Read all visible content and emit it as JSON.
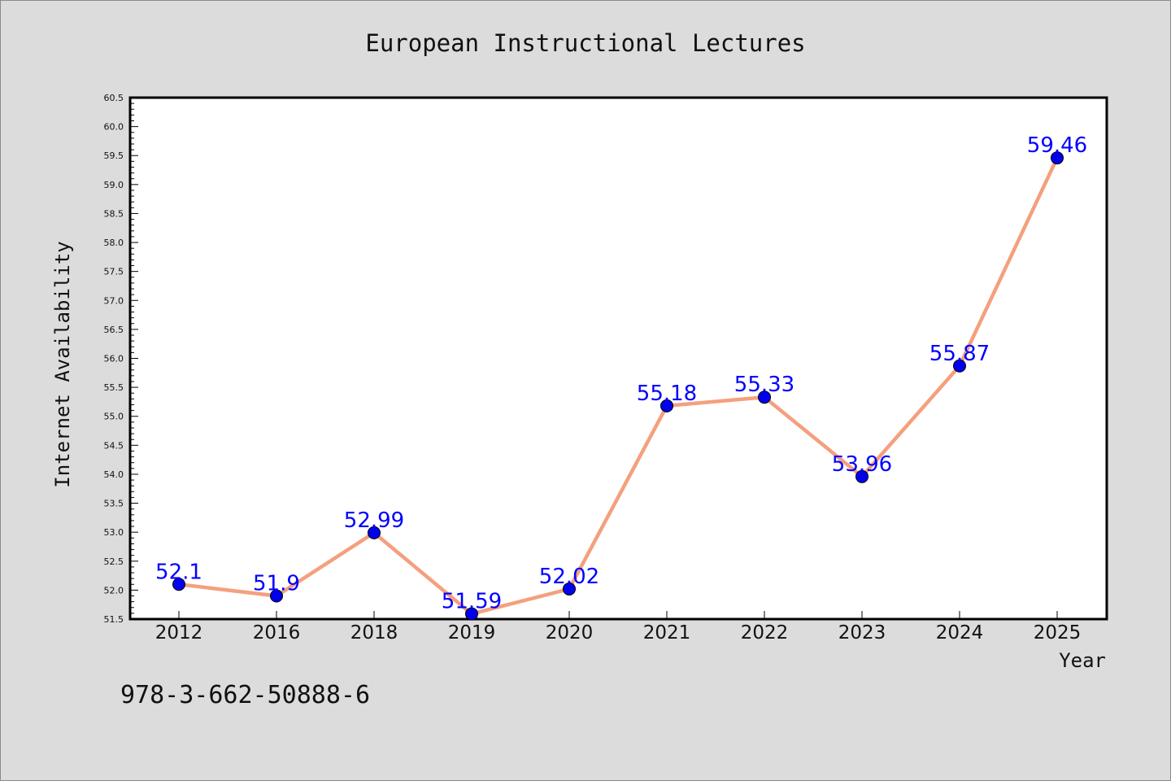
{
  "chart_data": {
    "type": "line",
    "title": "European Instructional Lectures",
    "xlabel": "Year",
    "ylabel": "Internet Availability",
    "categories": [
      "2012",
      "2016",
      "2018",
      "2019",
      "2020",
      "2021",
      "2022",
      "2023",
      "2024",
      "2025"
    ],
    "series": [
      {
        "values": [
          52.1,
          51.9,
          52.99,
          51.59,
          52.02,
          55.18,
          55.33,
          53.96,
          55.87,
          59.46
        ],
        "data_labels": [
          "52.1",
          "51.9",
          "52.99",
          "51.59",
          "52.02",
          "55.18",
          "55.33",
          "53.96",
          "55.87",
          "59.46"
        ],
        "line_color": "#f4a07e",
        "marker_color": "#0000ee",
        "label_color": "#0000ff"
      }
    ],
    "ylim": [
      51.5,
      60.5
    ],
    "yticks": [
      "51.5",
      "52.0",
      "52.5",
      "53.0",
      "53.5",
      "54.0",
      "54.5",
      "55.0",
      "55.5",
      "56.0",
      "56.5",
      "57.0",
      "57.5",
      "58.0",
      "58.5",
      "59.0",
      "59.5",
      "60.0",
      "60.5"
    ],
    "grid": false,
    "legend": "none"
  },
  "footer": {
    "isbn": "978-3-662-50888-6"
  }
}
